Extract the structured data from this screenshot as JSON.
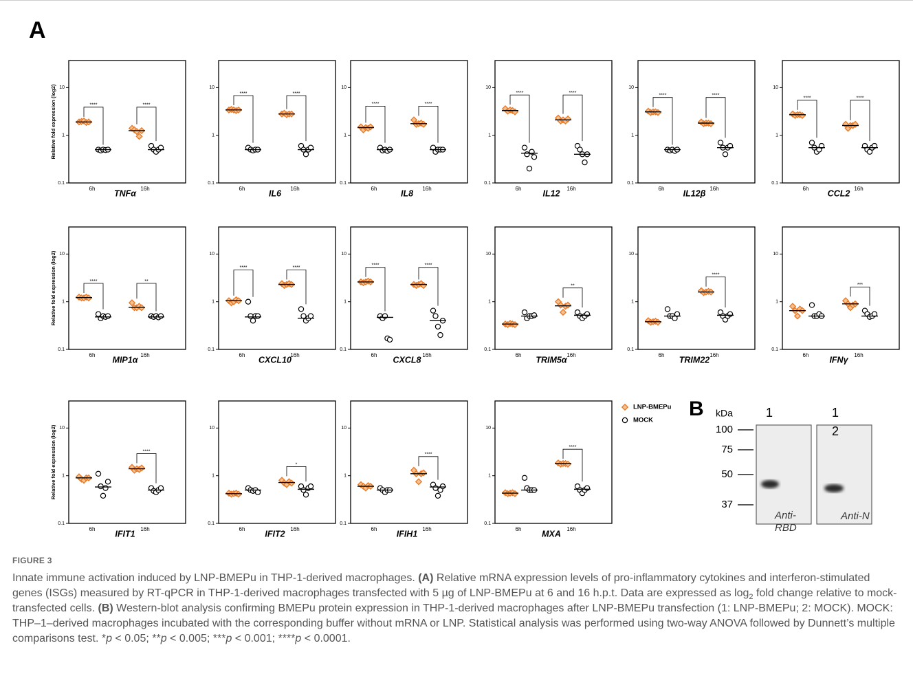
{
  "panel_a": "A",
  "legend": [
    {
      "name": "LNP-BMEPu",
      "color": "#e87722",
      "marker": "diamond"
    },
    {
      "name": "MOCK",
      "color": "#000000",
      "marker": "circle"
    }
  ],
  "chart_data": [
    {
      "type": "dotplot",
      "title": "TNFα",
      "ylabel": "Relative fold expression (log2)",
      "categories": [
        "6h",
        "16h"
      ],
      "ylim": [
        0.1,
        37
      ],
      "yticks": [
        0.1,
        1,
        10
      ],
      "log_y": true,
      "series": [
        {
          "values": [
            [
              1.9,
              1.95,
              2.0,
              1.85,
              1.9
            ],
            [
              1.4,
              1.3,
              1.2,
              0.95,
              1.25
            ]
          ],
          "medians": [
            1.9,
            1.25
          ]
        },
        {
          "values": [
            [
              0.5,
              0.48,
              0.5,
              0.49,
              0.5
            ],
            [
              0.6,
              0.5,
              0.45,
              0.5,
              0.55
            ]
          ],
          "medians": [
            0.5,
            0.5
          ]
        }
      ],
      "significance": [
        "****",
        "****"
      ]
    },
    {
      "type": "dotplot",
      "title": "IL6",
      "categories": [
        "6h",
        "16h"
      ],
      "ylim": [
        0.1,
        37
      ],
      "yticks": [
        0.1,
        1,
        10
      ],
      "log_y": true,
      "series": [
        {
          "values": [
            [
              3.4,
              3.5,
              3.4,
              3.3,
              3.4
            ],
            [
              2.8,
              2.9,
              2.7,
              2.8,
              2.8
            ]
          ],
          "medians": [
            3.4,
            2.8
          ]
        },
        {
          "values": [
            [
              0.55,
              0.5,
              0.48,
              0.5,
              0.5
            ],
            [
              0.6,
              0.5,
              0.4,
              0.5,
              0.55
            ]
          ],
          "medians": [
            0.5,
            0.5
          ]
        }
      ],
      "significance": [
        "****",
        "****"
      ]
    },
    {
      "type": "dotplot",
      "title": "IL8",
      "categories": [
        "6h",
        "16h"
      ],
      "ylim": [
        0.1,
        37
      ],
      "yticks": [
        0.1,
        1,
        10
      ],
      "log_y": true,
      "series": [
        {
          "values": [
            [
              1.5,
              1.3,
              1.45,
              1.4,
              1.5
            ],
            [
              2.1,
              1.7,
              1.75,
              1.8,
              1.7
            ]
          ],
          "medians": [
            1.45,
            1.75
          ]
        },
        {
          "values": [
            [
              0.55,
              0.48,
              0.5,
              0.47,
              0.5
            ],
            [
              0.55,
              0.45,
              0.5,
              0.5,
              0.5
            ]
          ],
          "medians": [
            0.5,
            0.5
          ]
        }
      ],
      "significance": [
        "****",
        "****"
      ]
    },
    {
      "type": "dotplot",
      "title": "IL12",
      "categories": [
        "6h",
        "16h"
      ],
      "ylim": [
        0.1,
        37
      ],
      "yticks": [
        0.1,
        1,
        10
      ],
      "log_y": true,
      "series": [
        {
          "values": [
            [
              3.6,
              3.2,
              3.4,
              3.3,
              3.1
            ],
            [
              2.3,
              2.0,
              2.1,
              2.0,
              2.2
            ]
          ],
          "medians": [
            3.3,
            2.1
          ]
        },
        {
          "values": [
            [
              0.55,
              0.4,
              0.2,
              0.45,
              0.35
            ],
            [
              0.6,
              0.5,
              0.4,
              0.27,
              0.4
            ]
          ],
          "medians": [
            0.42,
            0.4
          ]
        }
      ],
      "significance": [
        "****",
        "****"
      ]
    },
    {
      "type": "dotplot",
      "title": "IL12β",
      "categories": [
        "6h",
        "16h"
      ],
      "ylim": [
        0.1,
        37
      ],
      "yticks": [
        0.1,
        1,
        10
      ],
      "log_y": true,
      "series": [
        {
          "values": [
            [
              3.2,
              3.0,
              3.1,
              3.1,
              3.0
            ],
            [
              1.9,
              1.75,
              1.8,
              1.8,
              1.75
            ]
          ],
          "medians": [
            3.1,
            1.8
          ]
        },
        {
          "values": [
            [
              0.5,
              0.48,
              0.5,
              0.47,
              0.5
            ],
            [
              0.7,
              0.55,
              0.4,
              0.55,
              0.6
            ]
          ],
          "medians": [
            0.5,
            0.55
          ]
        }
      ],
      "significance": [
        "****",
        "****"
      ]
    },
    {
      "type": "dotplot",
      "title": "CCL2",
      "categories": [
        "6h",
        "16h"
      ],
      "ylim": [
        0.1,
        37
      ],
      "yticks": [
        0.1,
        1,
        10
      ],
      "log_y": true,
      "series": [
        {
          "values": [
            [
              2.8,
              2.6,
              2.7,
              2.7,
              2.6
            ],
            [
              1.7,
              1.4,
              1.6,
              1.6,
              1.7
            ]
          ],
          "medians": [
            2.7,
            1.6
          ]
        },
        {
          "values": [
            [
              0.7,
              0.55,
              0.45,
              0.5,
              0.6
            ],
            [
              0.6,
              0.5,
              0.45,
              0.55,
              0.6
            ]
          ],
          "medians": [
            0.55,
            0.55
          ]
        }
      ],
      "significance": [
        "****",
        "****"
      ]
    },
    {
      "type": "dotplot",
      "title": "MIP1α",
      "ylabel": "Relative fold expression (log2)",
      "categories": [
        "6h",
        "16h"
      ],
      "ylim": [
        0.1,
        37
      ],
      "yticks": [
        0.1,
        1,
        10
      ],
      "log_y": true,
      "series": [
        {
          "values": [
            [
              1.25,
              1.2,
              1.2,
              1.25,
              1.2
            ],
            [
              0.95,
              0.75,
              0.75,
              0.8,
              0.75
            ]
          ],
          "medians": [
            1.22,
            0.76
          ]
        },
        {
          "values": [
            [
              0.55,
              0.45,
              0.5,
              0.48,
              0.5
            ],
            [
              0.5,
              0.48,
              0.5,
              0.47,
              0.5
            ]
          ],
          "medians": [
            0.48,
            0.48
          ]
        }
      ],
      "significance": [
        "****",
        "**"
      ]
    },
    {
      "type": "dotplot",
      "title": "CXCL10",
      "categories": [
        "6h",
        "16h"
      ],
      "ylim": [
        0.1,
        37
      ],
      "yticks": [
        0.1,
        1,
        10
      ],
      "log_y": true,
      "series": [
        {
          "values": [
            [
              1.05,
              0.95,
              1.0,
              1.1,
              1.05
            ],
            [
              2.4,
              2.2,
              2.3,
              2.4,
              2.3
            ]
          ],
          "medians": [
            1.05,
            2.3
          ]
        },
        {
          "values": [
            [
              1.0,
              0.5,
              0.4,
              0.5,
              0.5
            ],
            [
              0.7,
              0.5,
              0.4,
              0.45,
              0.5
            ]
          ],
          "medians": [
            0.48,
            0.45
          ]
        }
      ],
      "significance": [
        "****",
        "****"
      ]
    },
    {
      "type": "dotplot",
      "title": "CXCL8",
      "categories": [
        "6h",
        "16h"
      ],
      "ylim": [
        0.1,
        37
      ],
      "yticks": [
        0.1,
        1,
        10
      ],
      "log_y": true,
      "series": [
        {
          "values": [
            [
              2.6,
              2.5,
              2.6,
              2.7,
              2.6
            ],
            [
              2.3,
              2.2,
              2.3,
              2.4,
              2.2
            ]
          ],
          "medians": [
            2.6,
            2.3
          ]
        },
        {
          "values": [
            [
              0.5,
              0.45,
              0.5,
              0.17,
              0.16
            ],
            [
              0.65,
              0.5,
              0.3,
              0.2,
              0.4
            ]
          ],
          "medians": [
            0.47,
            0.4
          ]
        }
      ],
      "significance": [
        "****",
        "****"
      ]
    },
    {
      "type": "dotplot",
      "title": "TRIM5α",
      "categories": [
        "6h",
        "16h"
      ],
      "ylim": [
        0.1,
        37
      ],
      "yticks": [
        0.1,
        1,
        10
      ],
      "log_y": true,
      "series": [
        {
          "values": [
            [
              0.34,
              0.33,
              0.35,
              0.34,
              0.33
            ],
            [
              1.0,
              0.85,
              0.6,
              0.8,
              0.85
            ]
          ],
          "medians": [
            0.34,
            0.82
          ]
        },
        {
          "values": [
            [
              0.6,
              0.45,
              0.5,
              0.5,
              0.52
            ],
            [
              0.6,
              0.5,
              0.45,
              0.5,
              0.55
            ]
          ],
          "medians": [
            0.5,
            0.52
          ]
        }
      ],
      "significance": [
        null,
        "**"
      ]
    },
    {
      "type": "dotplot",
      "title": "TRIM22",
      "categories": [
        "6h",
        "16h"
      ],
      "ylim": [
        0.1,
        37
      ],
      "yticks": [
        0.1,
        1,
        10
      ],
      "log_y": true,
      "series": [
        {
          "values": [
            [
              0.4,
              0.37,
              0.38,
              0.39,
              0.37
            ],
            [
              1.7,
              1.55,
              1.6,
              1.65,
              1.6
            ]
          ],
          "medians": [
            0.38,
            1.6
          ]
        },
        {
          "values": [
            [
              0.7,
              0.5,
              0.5,
              0.45,
              0.55
            ],
            [
              0.6,
              0.5,
              0.42,
              0.5,
              0.55
            ]
          ],
          "medians": [
            0.5,
            0.52
          ]
        }
      ],
      "significance": [
        null,
        "****"
      ]
    },
    {
      "type": "dotplot",
      "title": "IFNγ",
      "categories": [
        "6h",
        "16h"
      ],
      "ylim": [
        0.1,
        37
      ],
      "yticks": [
        0.1,
        1,
        10
      ],
      "log_y": true,
      "series": [
        {
          "values": [
            [
              0.8,
              0.65,
              0.5,
              0.7,
              0.65
            ],
            [
              1.05,
              0.9,
              0.75,
              0.85,
              0.9
            ]
          ],
          "medians": [
            0.65,
            0.9
          ]
        },
        {
          "values": [
            [
              0.85,
              0.5,
              0.5,
              0.55,
              0.5
            ],
            [
              0.65,
              0.55,
              0.48,
              0.5,
              0.55
            ]
          ],
          "medians": [
            0.5,
            0.5
          ]
        }
      ],
      "significance": [
        null,
        "***"
      ]
    },
    {
      "type": "dotplot",
      "title": "IFIT1",
      "ylabel": "Relative fold expression (log2)",
      "categories": [
        "6h",
        "16h"
      ],
      "ylim": [
        0.1,
        37
      ],
      "yticks": [
        0.1,
        1,
        10
      ],
      "log_y": true,
      "series": [
        {
          "values": [
            [
              0.95,
              0.85,
              0.8,
              0.9,
              0.9
            ],
            [
              1.5,
              1.3,
              1.4,
              1.35,
              1.45
            ]
          ],
          "medians": [
            0.9,
            1.4
          ]
        },
        {
          "values": [
            [
              1.1,
              0.6,
              0.38,
              0.55,
              0.75
            ],
            [
              0.55,
              0.48,
              0.45,
              0.5,
              0.55
            ]
          ],
          "medians": [
            0.58,
            0.5
          ]
        }
      ],
      "significance": [
        null,
        "****"
      ]
    },
    {
      "type": "dotplot",
      "title": "IFIT2",
      "categories": [
        "6h",
        "16h"
      ],
      "ylim": [
        0.1,
        37
      ],
      "yticks": [
        0.1,
        1,
        10
      ],
      "log_y": true,
      "series": [
        {
          "values": [
            [
              0.43,
              0.41,
              0.42,
              0.43,
              0.41
            ],
            [
              0.8,
              0.7,
              0.65,
              0.75,
              0.7
            ]
          ],
          "medians": [
            0.42,
            0.72
          ]
        },
        {
          "values": [
            [
              0.55,
              0.5,
              0.48,
              0.5,
              0.45
            ],
            [
              0.6,
              0.5,
              0.4,
              0.55,
              0.6
            ]
          ],
          "medians": [
            0.5,
            0.52
          ]
        }
      ],
      "significance": [
        null,
        "*"
      ]
    },
    {
      "type": "dotplot",
      "title": "IFIH1",
      "categories": [
        "6h",
        "16h"
      ],
      "ylim": [
        0.1,
        37
      ],
      "yticks": [
        0.1,
        1,
        10
      ],
      "log_y": true,
      "series": [
        {
          "values": [
            [
              0.65,
              0.6,
              0.55,
              0.62,
              0.6
            ],
            [
              1.3,
              1.1,
              0.75,
              1.1,
              1.15
            ]
          ],
          "medians": [
            0.6,
            1.1
          ]
        },
        {
          "values": [
            [
              0.55,
              0.5,
              0.45,
              0.5,
              0.5
            ],
            [
              0.65,
              0.55,
              0.38,
              0.5,
              0.6
            ]
          ],
          "medians": [
            0.5,
            0.58
          ]
        }
      ],
      "significance": [
        null,
        "****"
      ]
    },
    {
      "type": "dotplot",
      "title": "MXA",
      "categories": [
        "6h",
        "16h"
      ],
      "ylim": [
        0.1,
        37
      ],
      "yticks": [
        0.1,
        1,
        10
      ],
      "log_y": true,
      "series": [
        {
          "values": [
            [
              0.44,
              0.42,
              0.43,
              0.44,
              0.42
            ],
            [
              1.85,
              1.75,
              1.8,
              1.8,
              1.75
            ]
          ],
          "medians": [
            0.43,
            1.8
          ]
        },
        {
          "values": [
            [
              0.9,
              0.55,
              0.5,
              0.5,
              0.5
            ],
            [
              0.6,
              0.5,
              0.43,
              0.5,
              0.55
            ]
          ],
          "medians": [
            0.5,
            0.52
          ]
        }
      ],
      "significance": [
        null,
        "****"
      ]
    }
  ],
  "blot": {
    "label": "B",
    "unit": "kDa",
    "ladder": [
      100,
      75,
      50,
      37
    ],
    "lanes": [
      {
        "numbers": [
          "1"
        ],
        "antibody": "Anti-RBD"
      },
      {
        "numbers": [
          "1",
          "2"
        ],
        "antibody": "Anti-N"
      }
    ]
  },
  "caption": {
    "label": "FIGURE 3",
    "runs": [
      {
        "text": "Innate immune activation induced by LNP-BMEPu in THP-1-derived macrophages. ",
        "style": "normal"
      },
      {
        "text": "(A)",
        "style": "bold"
      },
      {
        "text": " Relative mRNA expression levels of pro-inflammatory cytokines and interferon-stimulated genes (ISGs) measured by RT-qPCR in THP-1-derived macrophages transfected with 5 µg of LNP-BMEPu at 6 and 16 h.p.t. Data are expressed as log",
        "style": "normal"
      },
      {
        "text": "2",
        "style": "sub"
      },
      {
        "text": " fold change relative to mock-transfected cells. ",
        "style": "normal"
      },
      {
        "text": "(B)",
        "style": "bold"
      },
      {
        "text": " Western-blot analysis confirming BMEPu protein expression in THP-1-derived macrophages after LNP-BMEPu transfection (1: LNP-BMEPu; 2: MOCK). MOCK: THP–1–derived macrophages incubated with the corresponding buffer without mRNA or LNP. Statistical analysis was performed using two-way ANOVA followed by Dunnett’s multiple comparisons test. *",
        "style": "normal"
      },
      {
        "text": "p",
        "style": "italic"
      },
      {
        "text": " < 0.05; **",
        "style": "normal"
      },
      {
        "text": "p",
        "style": "italic"
      },
      {
        "text": " < 0.005; ***",
        "style": "normal"
      },
      {
        "text": "p",
        "style": "italic"
      },
      {
        "text": " < 0.001; ****",
        "style": "normal"
      },
      {
        "text": "p",
        "style": "italic"
      },
      {
        "text": " < 0.0001.",
        "style": "normal"
      }
    ]
  }
}
